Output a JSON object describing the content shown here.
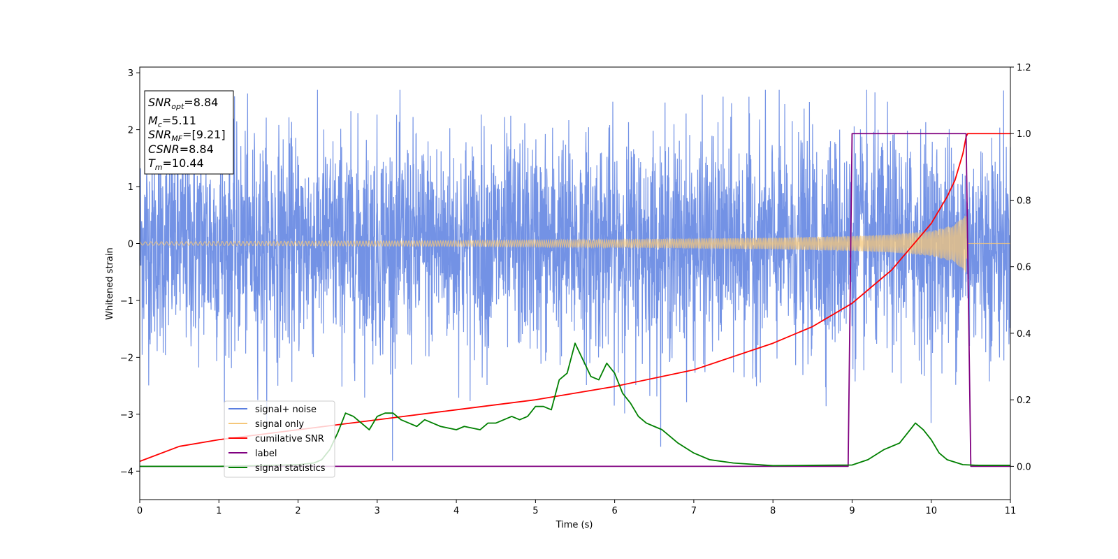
{
  "chart_data": {
    "type": "line",
    "xlabel": "Time (s)",
    "ylabel": "Whitened strain",
    "xlim": [
      0,
      11
    ],
    "ylim": [
      -4.5,
      3.1
    ],
    "y2lim": [
      -0.1,
      1.2
    ],
    "grid": false,
    "legend_position": "lower-left",
    "x_ticks": [
      "0",
      "1",
      "2",
      "3",
      "4",
      "5",
      "6",
      "7",
      "8",
      "9",
      "10",
      "11"
    ],
    "y_ticks": [
      "3",
      "2",
      "1",
      "0",
      "−1",
      "−2",
      "−3",
      "−4"
    ],
    "y2_ticks": [
      "1.2",
      "1.0",
      "0.8",
      "0.6",
      "0.4",
      "0.2",
      "0.0"
    ],
    "series": [
      {
        "name": "signal+ noise",
        "axis": "left",
        "color": "#5b7fe0",
        "description_values": {
          "approx_sigma": 0.95,
          "min": -4.15,
          "max": 2.7
        }
      },
      {
        "name": "signal only",
        "axis": "left",
        "color": "#f5c77a",
        "amplitude_envelope": {
          "x": [
            0,
            2,
            4,
            6,
            8,
            9,
            9.5,
            10,
            10.3,
            10.44,
            10.46,
            11
          ],
          "y": [
            0.03,
            0.04,
            0.05,
            0.07,
            0.1,
            0.13,
            0.16,
            0.22,
            0.33,
            0.55,
            0.0,
            0.0
          ]
        }
      },
      {
        "name": "cumilative SNR",
        "axis": "right",
        "color": "#ff0000",
        "x": [
          0,
          0.5,
          1,
          2,
          3,
          4,
          5,
          6,
          7,
          8,
          8.5,
          9,
          9.5,
          10,
          10.2,
          10.3,
          10.4,
          10.44,
          10.46,
          11
        ],
        "y": [
          0.015,
          0.06,
          0.08,
          0.11,
          0.14,
          0.17,
          0.2,
          0.24,
          0.29,
          0.37,
          0.42,
          0.49,
          0.59,
          0.73,
          0.81,
          0.86,
          0.94,
          0.99,
          1.0,
          1.0
        ]
      },
      {
        "name": "label",
        "axis": "right",
        "color": "#800080",
        "x": [
          0,
          8.95,
          9.0,
          10.44,
          10.5,
          11
        ],
        "y": [
          0,
          0,
          1,
          1,
          0,
          0
        ]
      },
      {
        "name": "signal statistics",
        "axis": "right",
        "color": "#008000",
        "x": [
          0,
          1,
          1.5,
          2,
          2.2,
          2.3,
          2.4,
          2.5,
          2.6,
          2.7,
          2.8,
          2.9,
          3.0,
          3.1,
          3.2,
          3.3,
          3.4,
          3.5,
          3.6,
          3.7,
          3.8,
          3.9,
          4.0,
          4.1,
          4.2,
          4.3,
          4.4,
          4.5,
          4.6,
          4.7,
          4.8,
          4.9,
          5.0,
          5.1,
          5.2,
          5.3,
          5.4,
          5.5,
          5.6,
          5.7,
          5.8,
          5.9,
          6.0,
          6.1,
          6.2,
          6.3,
          6.4,
          6.5,
          6.6,
          6.8,
          7.0,
          7.2,
          7.5,
          8.0,
          8.5,
          9.0,
          9.2,
          9.4,
          9.6,
          9.7,
          9.8,
          9.9,
          10.0,
          10.1,
          10.2,
          10.4,
          10.6,
          11
        ],
        "y": [
          0.0,
          0.0,
          0.002,
          0.005,
          0.01,
          0.02,
          0.05,
          0.1,
          0.16,
          0.15,
          0.13,
          0.11,
          0.15,
          0.16,
          0.16,
          0.14,
          0.13,
          0.12,
          0.14,
          0.13,
          0.12,
          0.115,
          0.11,
          0.12,
          0.115,
          0.11,
          0.13,
          0.13,
          0.14,
          0.15,
          0.14,
          0.15,
          0.18,
          0.18,
          0.17,
          0.26,
          0.28,
          0.37,
          0.32,
          0.27,
          0.26,
          0.31,
          0.28,
          0.22,
          0.19,
          0.15,
          0.13,
          0.12,
          0.11,
          0.07,
          0.04,
          0.02,
          0.01,
          0.002,
          0.003,
          0.004,
          0.02,
          0.05,
          0.07,
          0.1,
          0.13,
          0.11,
          0.08,
          0.04,
          0.02,
          0.005,
          0.003,
          0.003
        ]
      }
    ],
    "info_box": {
      "snr_opt": {
        "base": "SNR",
        "sub": "opt",
        "value": "=8.84"
      },
      "mc": {
        "base": "M",
        "sub": "c",
        "value": "=5.11"
      },
      "snr_mf": {
        "base": "SNR",
        "sub": "MF",
        "value": "=[9.21]"
      },
      "csnr": {
        "base": "CSNR",
        "value": "=8.84"
      },
      "tm": {
        "base": "T",
        "sub": "m",
        "value": "=10.44"
      }
    },
    "legend": {
      "signal_noise": "signal+ noise",
      "signal_only": "signal only",
      "cumulative_snr": "cumilative SNR",
      "label": "label",
      "signal_statistics": "signal statistics"
    }
  }
}
